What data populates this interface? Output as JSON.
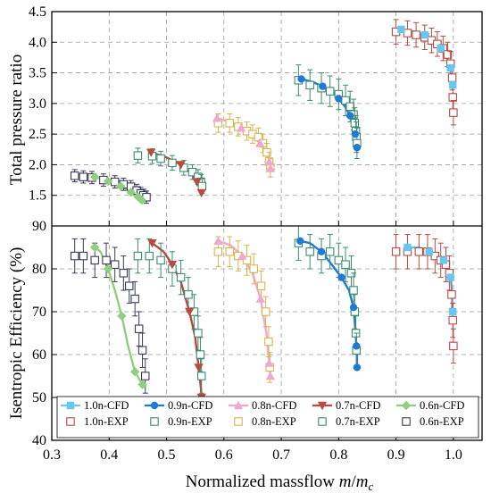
{
  "chart_data": {
    "type": "line",
    "xlabel_main": "Normalized massflow ",
    "xlabel_var": "m",
    "xlabel_div": "/",
    "xlabel_sub_base": "m",
    "xlabel_sub": "c",
    "xlim": [
      0.3,
      1.05
    ],
    "x_ticks": [
      "0.3",
      "0.4",
      "0.5",
      "0.6",
      "0.7",
      "0.8",
      "0.9",
      "1.0"
    ],
    "panels": [
      {
        "ylabel": "Total pressure ratio",
        "ylim": [
          1.0,
          4.5
        ],
        "y_ticks": [
          "1.5",
          "2.0",
          "2.5",
          "3.0",
          "3.5",
          "4.0",
          "4.5"
        ],
        "series": [
          {
            "name": "1.0n-CFD",
            "color": "#66c8f2",
            "marker": "square-filled",
            "x": [
              0.909,
              0.93,
              0.95,
              0.965,
              0.978,
              0.988,
              0.995,
              0.998,
              0.999
            ],
            "y": [
              4.21,
              4.18,
              4.12,
              4.02,
              3.9,
              3.75,
              3.58,
              3.4,
              3.3
            ]
          },
          {
            "name": "0.9n-CFD",
            "color": "#1f7ad6",
            "marker": "circle-filled",
            "x": [
              0.735,
              0.755,
              0.772,
              0.787,
              0.8,
              0.811,
              0.82,
              0.826,
              0.829,
              0.831,
              0.832
            ],
            "y": [
              3.4,
              3.35,
              3.28,
              3.2,
              3.08,
              2.95,
              2.8,
              2.65,
              2.5,
              2.38,
              2.28
            ]
          },
          {
            "name": "0.8n-CFD",
            "color": "#f0a8cf",
            "marker": "triangle-up-filled",
            "x": [
              0.588,
              0.61,
              0.63,
              0.648,
              0.663,
              0.673,
              0.679,
              0.681
            ],
            "y": [
              2.76,
              2.7,
              2.6,
              2.48,
              2.35,
              2.2,
              2.05,
              1.94
            ]
          },
          {
            "name": "0.7n-CFD",
            "color": "#b84a40",
            "marker": "triangle-down-filled",
            "x": [
              0.473,
              0.5,
              0.525,
              0.543,
              0.553,
              0.559,
              0.561
            ],
            "y": [
              2.2,
              2.12,
              2.0,
              1.86,
              1.72,
              1.6,
              1.54
            ]
          },
          {
            "name": "0.6n-CFD",
            "color": "#8fce7e",
            "marker": "diamond-filled",
            "x": [
              0.375,
              0.398,
              0.42,
              0.438,
              0.45,
              0.457
            ],
            "y": [
              1.8,
              1.73,
              1.65,
              1.55,
              1.48,
              1.42
            ]
          },
          {
            "name": "1.0n-EXP",
            "color": "#b84a40",
            "marker": "square-open",
            "x": [
              0.9,
              0.92,
              0.935,
              0.95,
              0.962,
              0.972,
              0.982,
              0.99,
              0.995,
              0.998,
              0.999,
              1.0
            ],
            "y": [
              4.17,
              4.15,
              4.12,
              4.08,
              4.03,
              3.97,
              3.9,
              3.8,
              3.65,
              3.42,
              3.1,
              2.85
            ],
            "err": 0.2
          },
          {
            "name": "0.9n-EXP",
            "color": "#3a8c6e",
            "marker": "square-open",
            "x": [
              0.73,
              0.75,
              0.77,
              0.785,
              0.8,
              0.812,
              0.82,
              0.826,
              0.828,
              0.83,
              0.831,
              0.832
            ],
            "y": [
              3.38,
              3.3,
              3.25,
              3.2,
              3.15,
              3.05,
              2.95,
              2.82,
              2.68,
              2.55,
              2.45,
              2.35
            ],
            "err": 0.25
          },
          {
            "name": "0.8n-EXP",
            "color": "#d8b44a",
            "marker": "square-open",
            "x": [
              0.59,
              0.61,
              0.625,
              0.64,
              0.65,
              0.66,
              0.668,
              0.675,
              0.679,
              0.681
            ],
            "y": [
              2.68,
              2.68,
              2.62,
              2.55,
              2.5,
              2.45,
              2.35,
              2.2,
              2.05,
              1.95
            ],
            "err": 0.15
          },
          {
            "name": "0.7n-EXP",
            "color": "#3a8c6e",
            "marker": "square-open",
            "x": [
              0.45,
              0.475,
              0.49,
              0.51,
              0.53,
              0.545,
              0.555,
              0.56,
              0.562
            ],
            "y": [
              2.15,
              2.14,
              2.1,
              2.03,
              1.95,
              1.88,
              1.8,
              1.72,
              1.65
            ],
            "err": 0.12
          },
          {
            "name": "0.6n-EXP",
            "color": "#3a3a5a",
            "marker": "square-open",
            "x": [
              0.34,
              0.355,
              0.37,
              0.39,
              0.41,
              0.425,
              0.438,
              0.448,
              0.455,
              0.46,
              0.465
            ],
            "y": [
              1.82,
              1.8,
              1.79,
              1.75,
              1.72,
              1.68,
              1.64,
              1.58,
              1.53,
              1.5,
              1.47
            ],
            "err": 0.1
          }
        ]
      },
      {
        "ylabel": "Isentropic Efficiency (%)",
        "ylim": [
          40,
          90
        ],
        "y_ticks": [
          "40",
          "50",
          "60",
          "70",
          "80",
          "90"
        ],
        "series": [
          {
            "name": "1.0n-CFD",
            "color": "#66c8f2",
            "marker": "square-filled",
            "x": [
              0.92,
              0.94,
              0.958,
              0.972,
              0.983,
              0.99,
              0.995,
              0.998,
              0.999
            ],
            "y": [
              85,
              85,
              84,
              83,
              82,
              80,
              78,
              74,
              70
            ]
          },
          {
            "name": "0.9n-CFD",
            "color": "#1f7ad6",
            "marker": "circle-filled",
            "x": [
              0.733,
              0.75,
              0.77,
              0.788,
              0.805,
              0.818,
              0.826,
              0.829,
              0.831,
              0.832,
              0.832
            ],
            "y": [
              86.5,
              86,
              84,
              81,
              78,
              75,
              71,
              66,
              62,
              59,
              57
            ]
          },
          {
            "name": "0.8n-CFD",
            "color": "#f0a8cf",
            "marker": "triangle-up-filled",
            "x": [
              0.59,
              0.612,
              0.632,
              0.65,
              0.664,
              0.674,
              0.679,
              0.681
            ],
            "y": [
              86.5,
              85.5,
              83,
              79,
              73,
              65,
              58,
              55
            ]
          },
          {
            "name": "0.7n-CFD",
            "color": "#b84a40",
            "marker": "triangle-down-filled",
            "x": [
              0.475,
              0.495,
              0.51,
              0.525,
              0.54,
              0.55,
              0.556,
              0.56,
              0.561
            ],
            "y": [
              86,
              84,
              81,
              77,
              70,
              64,
              57,
              52,
              50
            ]
          },
          {
            "name": "0.6n-CFD",
            "color": "#8fce7e",
            "marker": "diamond-filled",
            "x": [
              0.375,
              0.385,
              0.398,
              0.41,
              0.422,
              0.433,
              0.445,
              0.458
            ],
            "y": [
              85,
              84,
              80,
              75,
              69,
              62,
              56,
              53
            ]
          },
          {
            "name": "1.0n-EXP",
            "color": "#b84a40",
            "marker": "square-open",
            "x": [
              0.9,
              0.92,
              0.94,
              0.955,
              0.968,
              0.978,
              0.987,
              0.993,
              0.997,
              0.999,
              1.0
            ],
            "y": [
              84,
              84,
              84,
              84,
              83,
              82,
              81,
              79,
              74,
              68,
              62
            ],
            "err": 4
          },
          {
            "name": "0.9n-EXP",
            "color": "#3a8c6e",
            "marker": "square-open",
            "x": [
              0.73,
              0.75,
              0.77,
              0.785,
              0.8,
              0.812,
              0.822,
              0.826,
              0.828,
              0.83,
              0.831
            ],
            "y": [
              86,
              84,
              83,
              84,
              82,
              81,
              79,
              75,
              70,
              65,
              61
            ],
            "err": 4
          },
          {
            "name": "0.8n-EXP",
            "color": "#d8b44a",
            "marker": "square-open",
            "x": [
              0.59,
              0.61,
              0.625,
              0.64,
              0.652,
              0.665,
              0.673,
              0.678,
              0.68
            ],
            "y": [
              84,
              84,
              83,
              82,
              80,
              76,
              70,
              63,
              57
            ],
            "err": 3.5
          },
          {
            "name": "0.7n-EXP",
            "color": "#3a8c6e",
            "marker": "square-open",
            "x": [
              0.45,
              0.47,
              0.49,
              0.51,
              0.525,
              0.538,
              0.548,
              0.555,
              0.559,
              0.561
            ],
            "y": [
              83,
              83,
              82,
              80,
              78,
              74,
              70,
              65,
              60,
              55
            ],
            "err": 4
          },
          {
            "name": "0.6n-EXP",
            "color": "#3a3a5a",
            "marker": "square-open",
            "x": [
              0.34,
              0.355,
              0.375,
              0.395,
              0.41,
              0.425,
              0.435,
              0.445,
              0.452,
              0.458,
              0.463
            ],
            "y": [
              83,
              83,
              82,
              82,
              81,
              79,
              76,
              73,
              66,
              61,
              55
            ],
            "err": 4
          }
        ]
      }
    ],
    "legend_position": "bottom",
    "legend_order": [
      "1.0n-CFD",
      "0.9n-CFD",
      "0.8n-CFD",
      "0.7n-CFD",
      "0.6n-CFD",
      "1.0n-EXP",
      "0.9n-EXP",
      "0.8n-EXP",
      "0.7n-EXP",
      "0.6n-EXP"
    ],
    "grid": true
  }
}
